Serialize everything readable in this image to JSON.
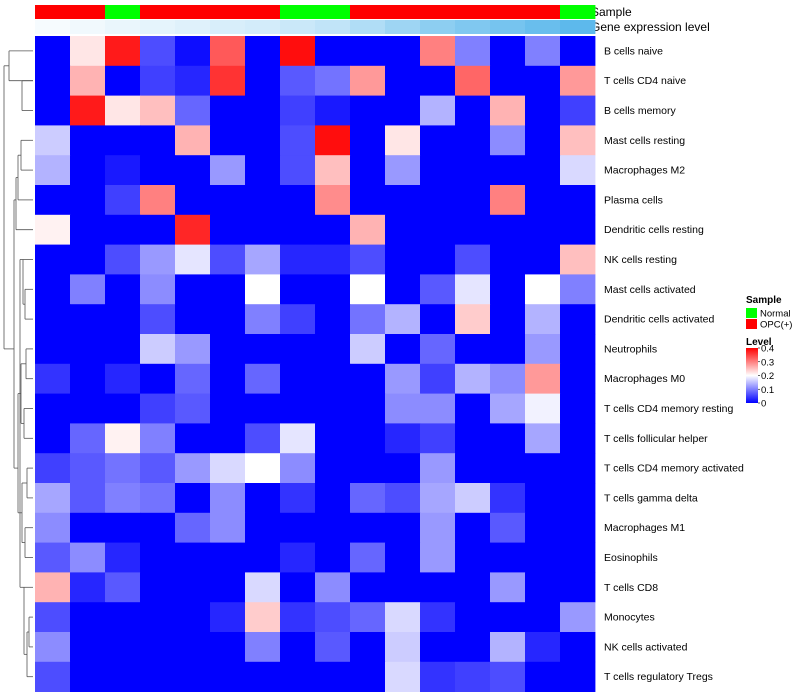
{
  "colors": {
    "normal": "#00ff00",
    "opc": "#ff0000",
    "low": "#0000ff",
    "mid": "#ffffff",
    "high": "#ff0000",
    "gene_low": "#ffffff",
    "gene_high": "#4fb3ea"
  },
  "chart_data": {
    "type": "heatmap",
    "annotation_labels": {
      "sample": "Sample",
      "gene": "Gene expression level"
    },
    "legend": {
      "sample_title": "Sample",
      "sample_items": [
        "Normal",
        "OPC(+)"
      ],
      "level_title": "Level",
      "level_ticks": [
        "0.4",
        "0.3",
        "0.2",
        "0.1",
        "0"
      ],
      "level_tick_values": [
        0.4,
        0.3,
        0.2,
        0.1,
        0
      ],
      "level_range": [
        0,
        0.4
      ]
    },
    "sample_groups": [
      "OPC(+)",
      "OPC(+)",
      "Normal",
      "OPC(+)",
      "OPC(+)",
      "OPC(+)",
      "OPC(+)",
      "Normal",
      "Normal",
      "OPC(+)",
      "OPC(+)",
      "OPC(+)",
      "OPC(+)",
      "OPC(+)",
      "OPC(+)",
      "Normal"
    ],
    "gene_expression": [
      0.05,
      0.08,
      0.12,
      0.15,
      0.18,
      0.22,
      0.25,
      0.3,
      0.35,
      0.45,
      0.55,
      0.65,
      0.72,
      0.78,
      0.85,
      0.92
    ],
    "rows": [
      "B cells naive",
      "T cells CD4 naive",
      "B cells memory",
      "Mast cells resting",
      "Macrophages M2",
      "Plasma cells",
      "Dendritic cells resting",
      "NK cells resting",
      "Mast cells activated",
      "Dendritic cells activated",
      "Neutrophils",
      "Macrophages M0",
      "T cells CD4 memory resting",
      "T cells follicular helper",
      "T cells CD4 memory activated",
      "T cells gamma delta",
      "Macrophages M1",
      "Eosinophils",
      "T cells CD8",
      "Monocytes",
      "NK cells activated",
      "T cells regulatory  Tregs"
    ],
    "values": [
      [
        0,
        0.22,
        0.38,
        0.06,
        0.01,
        0.33,
        0,
        0.39,
        0,
        0,
        0,
        0.3,
        0.1,
        0,
        0.1,
        0
      ],
      [
        0,
        0.26,
        0,
        0.05,
        0.03,
        0.36,
        0,
        0.07,
        0.09,
        0.28,
        0,
        0,
        0.32,
        0,
        0,
        0.28
      ],
      [
        0,
        0.38,
        0.22,
        0.25,
        0.08,
        0,
        0,
        0.05,
        0.02,
        0,
        0,
        0.14,
        0,
        0.26,
        0,
        0.05
      ],
      [
        0.16,
        0,
        0,
        0,
        0.26,
        0,
        0,
        0.06,
        0.39,
        0,
        0.22,
        0,
        0,
        0.11,
        0,
        0.25
      ],
      [
        0.14,
        0,
        0.02,
        0,
        0,
        0.12,
        0,
        0.06,
        0.25,
        0,
        0.12,
        0,
        0,
        0,
        0,
        0.17
      ],
      [
        0,
        0,
        0.05,
        0.3,
        0,
        0,
        0,
        0,
        0.29,
        0,
        0,
        0,
        0,
        0.3,
        0,
        0
      ],
      [
        0.21,
        0,
        0,
        0,
        0.37,
        0,
        0,
        0,
        0,
        0.26,
        0,
        0,
        0,
        0,
        0,
        0
      ],
      [
        0,
        0,
        0.06,
        0.12,
        0.18,
        0.06,
        0.13,
        0.03,
        0.03,
        0.06,
        0,
        0,
        0.06,
        0,
        0,
        0.25
      ],
      [
        0,
        0.1,
        0,
        0.11,
        0,
        0,
        0.2,
        0,
        0,
        0.2,
        0,
        0.07,
        0.18,
        0,
        0.2,
        0.1
      ],
      [
        0,
        0,
        0,
        0.06,
        0,
        0,
        0.1,
        0.05,
        0,
        0.09,
        0.14,
        0,
        0.24,
        0,
        0.14,
        0
      ],
      [
        0,
        0,
        0,
        0.16,
        0.12,
        0,
        0,
        0,
        0,
        0.16,
        0,
        0.08,
        0,
        0,
        0.12,
        0
      ],
      [
        0.04,
        0,
        0.03,
        0,
        0.08,
        0,
        0.08,
        0,
        0,
        0,
        0.12,
        0.05,
        0.14,
        0.11,
        0.28,
        0
      ],
      [
        0,
        0,
        0,
        0.05,
        0.07,
        0,
        0,
        0,
        0,
        0,
        0.11,
        0.11,
        0,
        0.13,
        0.19,
        0
      ],
      [
        0,
        0.08,
        0.21,
        0.1,
        0,
        0,
        0.06,
        0.18,
        0,
        0,
        0.03,
        0.05,
        0,
        0,
        0.13,
        0
      ],
      [
        0.05,
        0.07,
        0.09,
        0.07,
        0.12,
        0.17,
        0.2,
        0.11,
        0,
        0,
        0,
        0.12,
        0,
        0,
        0,
        0
      ],
      [
        0.13,
        0.07,
        0.1,
        0.09,
        0,
        0.11,
        0,
        0.04,
        0,
        0.08,
        0.06,
        0.13,
        0.16,
        0.04,
        0,
        0
      ],
      [
        0.11,
        0,
        0,
        0,
        0.08,
        0.11,
        0,
        0,
        0,
        0,
        0,
        0.12,
        0,
        0.07,
        0,
        0
      ],
      [
        0.07,
        0.11,
        0.03,
        0,
        0,
        0,
        0,
        0.03,
        0,
        0.08,
        0,
        0.12,
        0,
        0,
        0,
        0
      ],
      [
        0.26,
        0.03,
        0.07,
        0,
        0,
        0,
        0.17,
        0,
        0.11,
        0,
        0,
        0,
        0,
        0.12,
        0,
        0
      ],
      [
        0.06,
        0,
        0,
        0,
        0,
        0.03,
        0.24,
        0.04,
        0.06,
        0.08,
        0.17,
        0.04,
        0,
        0,
        0,
        0.12
      ],
      [
        0.11,
        0,
        0,
        0,
        0,
        0,
        0.1,
        0,
        0.07,
        0,
        0.16,
        0,
        0,
        0.14,
        0.03,
        0
      ],
      [
        0.06,
        0,
        0,
        0,
        0,
        0,
        0,
        0,
        0,
        0,
        0.17,
        0.04,
        0.05,
        0.06,
        0,
        0
      ]
    ]
  }
}
